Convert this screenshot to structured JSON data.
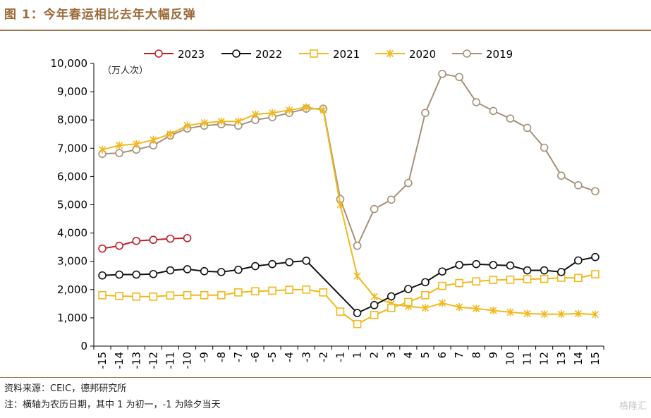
{
  "header": {
    "title": "图 1：今年春运相比去年大幅反弹"
  },
  "footer": {
    "source": "资料来源：CEIC，德邦研究所",
    "note": "注：横轴为农历日期，其中 1 为初一，-1 为除夕当天"
  },
  "watermark": "格隆汇",
  "chart_data": {
    "type": "line",
    "unit_label": "（万人次）",
    "categories": [
      "-15",
      "-14",
      "-13",
      "-12",
      "-11",
      "-10",
      "-9",
      "-8",
      "-7",
      "-6",
      "-5",
      "-4",
      "-3",
      "-2",
      "-1",
      "1",
      "2",
      "3",
      "4",
      "5",
      "6",
      "7",
      "8",
      "9",
      "10",
      "11",
      "12",
      "13",
      "14",
      "15"
    ],
    "y_ticks": [
      "0",
      "1,000",
      "2,000",
      "3,000",
      "4,000",
      "5,000",
      "6,000",
      "7,000",
      "8,000",
      "9,000",
      "10,000"
    ],
    "ylim": [
      0,
      10000
    ],
    "legend_position": "top",
    "series": [
      {
        "name": "2023",
        "color": "#c0202a",
        "marker": "circle",
        "values": [
          3450,
          3550,
          3720,
          3760,
          3800,
          3820,
          null,
          null,
          null,
          null,
          null,
          null,
          null,
          null,
          null,
          null,
          null,
          null,
          null,
          null,
          null,
          null,
          null,
          null,
          null,
          null,
          null,
          null,
          null,
          null
        ]
      },
      {
        "name": "2022",
        "color": "#111111",
        "marker": "circle",
        "values": [
          2500,
          2530,
          2530,
          2550,
          2680,
          2720,
          2650,
          2620,
          2700,
          2830,
          2900,
          2970,
          3020,
          null,
          null,
          1170,
          1450,
          1760,
          2020,
          2260,
          2640,
          2870,
          2900,
          2870,
          2850,
          2680,
          2680,
          2620,
          3030,
          3150
        ]
      },
      {
        "name": "2021",
        "color": "#f2b81c",
        "marker": "square",
        "values": [
          1800,
          1770,
          1750,
          1750,
          1790,
          1800,
          1800,
          1800,
          1900,
          1940,
          1960,
          1990,
          2000,
          1900,
          1220,
          780,
          1100,
          1350,
          1560,
          1800,
          2130,
          2230,
          2290,
          2340,
          2350,
          2370,
          2380,
          2420,
          2410,
          2540
        ]
      },
      {
        "name": "2020",
        "color": "#f2b81c",
        "marker": "x",
        "values": [
          6950,
          7100,
          7150,
          7300,
          7500,
          7800,
          7900,
          7950,
          7950,
          8200,
          8250,
          8350,
          8450,
          8350,
          5000,
          2480,
          1750,
          1500,
          1400,
          1350,
          1520,
          1380,
          1330,
          1260,
          1200,
          1150,
          1130,
          1130,
          1150,
          1120
        ]
      },
      {
        "name": "2019",
        "color": "#a59179",
        "marker": "circle",
        "values": [
          6800,
          6830,
          6950,
          7100,
          7450,
          7700,
          7800,
          7850,
          7800,
          8000,
          8100,
          8250,
          8400,
          8400,
          5200,
          3550,
          4850,
          5180,
          5770,
          8250,
          9630,
          9520,
          8630,
          8320,
          8050,
          7720,
          7020,
          6030,
          5690,
          5480
        ]
      }
    ]
  }
}
